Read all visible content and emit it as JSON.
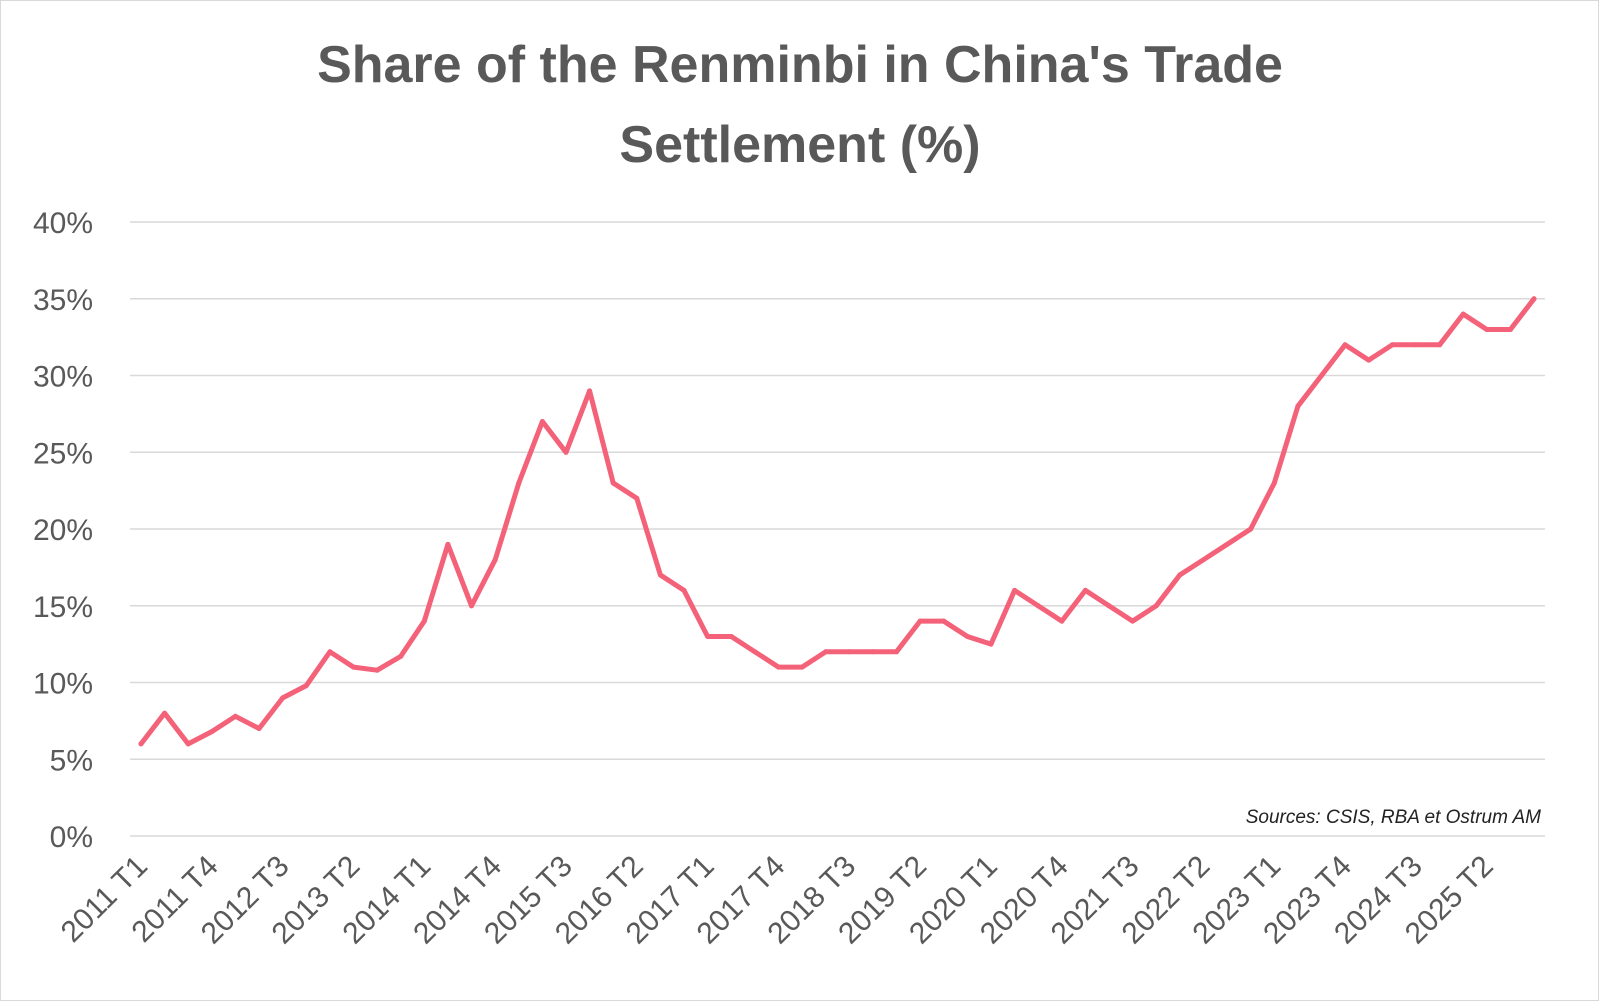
{
  "chart_data": {
    "type": "line",
    "title_lines": [
      "Share of the Renminbi in China's Trade",
      "Settlement (%)"
    ],
    "source": "Sources: CSIS, RBA et Ostrum AM",
    "ylim": [
      0,
      40
    ],
    "y_ticks": [
      "0%",
      "5%",
      "10%",
      "15%",
      "20%",
      "25%",
      "30%",
      "35%",
      "40%"
    ],
    "y_tick_values": [
      0,
      5,
      10,
      15,
      20,
      25,
      30,
      35,
      40
    ],
    "grid": true,
    "legend": "none",
    "line_color": "#f4627a",
    "x": [
      "2011 T1",
      "2011 T2",
      "2011 T3",
      "2011 T4",
      "2012 T1",
      "2012 T2",
      "2012 T3",
      "2012 T4",
      "2013 T1",
      "2013 T2",
      "2013 T3",
      "2013 T4",
      "2014 T1",
      "2014 T2",
      "2014 T3",
      "2014 T4",
      "2015 T1",
      "2015 T2",
      "2015 T3",
      "2015 T4",
      "2016 T1",
      "2016 T2",
      "2016 T3",
      "2016 T4",
      "2017 T1",
      "2017 T2",
      "2017 T3",
      "2017 T4",
      "2018 T1",
      "2018 T2",
      "2018 T3",
      "2018 T4",
      "2019 T1",
      "2019 T2",
      "2019 T3",
      "2019 T4",
      "2020 T1",
      "2020 T2",
      "2020 T3",
      "2020 T4",
      "2021 T1",
      "2021 T2",
      "2021 T3",
      "2021 T4",
      "2022 T1",
      "2022 T2",
      "2022 T3",
      "2022 T4",
      "2023 T1",
      "2023 T2",
      "2023 T3",
      "2023 T4",
      "2024 T1",
      "2024 T2",
      "2024 T3",
      "2024 T4",
      "2025 T1",
      "2025 T2",
      "2025 T3",
      "2025 T4"
    ],
    "x_tick_labels": [
      "2011 T1",
      "2011 T4",
      "2012 T3",
      "2013 T2",
      "2014 T1",
      "2014 T4",
      "2015 T3",
      "2016 T2",
      "2017 T1",
      "2017 T4",
      "2018 T3",
      "2019 T2",
      "2020 T1",
      "2020 T4",
      "2021 T3",
      "2022 T2",
      "2023 T1",
      "2023 T4",
      "2024 T3",
      "2025 T2"
    ],
    "series": [
      {
        "values": [
          6,
          8,
          6,
          6.8,
          7.8,
          7,
          9,
          9.8,
          12,
          11,
          10.8,
          11.7,
          14,
          19,
          15,
          18,
          23,
          27,
          25,
          29,
          23,
          22,
          17,
          16,
          13,
          13,
          12,
          11,
          11,
          12,
          12,
          12,
          12,
          14,
          14,
          13,
          12.5,
          16,
          15,
          14,
          16,
          15,
          14,
          15,
          17,
          18,
          19,
          20,
          23,
          28,
          30,
          32,
          31,
          32,
          32,
          32,
          34,
          33,
          33,
          35
        ]
      }
    ]
  }
}
